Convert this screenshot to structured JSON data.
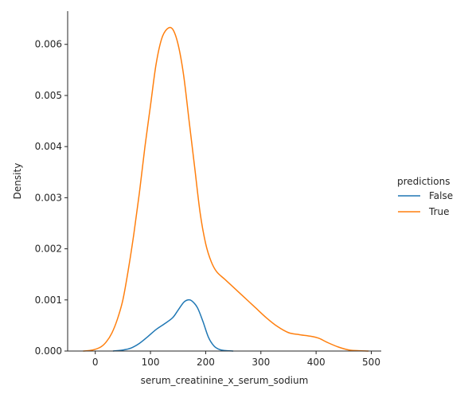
{
  "chart_data": {
    "type": "line",
    "title": "",
    "xlabel": "serum_creatinine_x_serum_sodium",
    "ylabel": "Density",
    "xlim": [
      -50,
      518
    ],
    "ylim": [
      0,
      0.00665
    ],
    "xticks": [
      0,
      100,
      200,
      300,
      400,
      500
    ],
    "xtick_labels": [
      "0",
      "100",
      "200",
      "300",
      "400",
      "500"
    ],
    "yticks": [
      0,
      0.001,
      0.002,
      0.003,
      0.004,
      0.005,
      0.006
    ],
    "ytick_labels": [
      "0.000",
      "0.001",
      "0.002",
      "0.003",
      "0.004",
      "0.005",
      "0.006"
    ],
    "grid": false,
    "legend": {
      "title": "predictions",
      "placement": "right"
    },
    "series": [
      {
        "name": "False",
        "color": "#1f77b4",
        "x": [
          32,
          50,
          65,
          80,
          95,
          110,
          125,
          140,
          150,
          160,
          168,
          175,
          185,
          195,
          205,
          215,
          225,
          235,
          250
        ],
        "y": [
          0,
          2e-05,
          6e-05,
          0.00015,
          0.00028,
          0.00042,
          0.00053,
          0.00065,
          0.0008,
          0.00095,
          0.001,
          0.00098,
          0.00085,
          0.00058,
          0.00027,
          0.0001,
          3e-05,
          1e-05,
          0
        ]
      },
      {
        "name": "True",
        "color": "#ff7f0e",
        "x": [
          -22,
          -5,
          10,
          20,
          30,
          40,
          50,
          60,
          70,
          80,
          90,
          100,
          110,
          120,
          130,
          140,
          150,
          160,
          170,
          180,
          190,
          200,
          210,
          220,
          235,
          250,
          270,
          290,
          310,
          330,
          350,
          370,
          390,
          405,
          420,
          440,
          460,
          480,
          495
        ],
        "y": [
          0,
          2e-05,
          8e-05,
          0.00018,
          0.00035,
          0.00062,
          0.001,
          0.0016,
          0.0023,
          0.0031,
          0.004,
          0.0048,
          0.0056,
          0.0061,
          0.0063,
          0.0063,
          0.006,
          0.0054,
          0.0045,
          0.0036,
          0.0027,
          0.0021,
          0.00175,
          0.00155,
          0.0014,
          0.00125,
          0.00105,
          0.00085,
          0.00065,
          0.00048,
          0.00036,
          0.00032,
          0.00029,
          0.00025,
          0.00017,
          8e-05,
          2e-05,
          5e-06,
          0
        ]
      }
    ]
  }
}
